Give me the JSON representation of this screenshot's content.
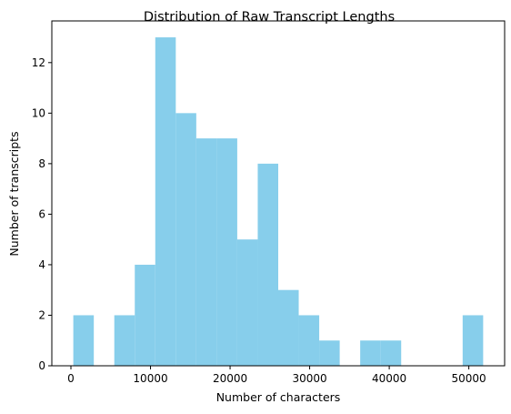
{
  "chart_data": {
    "type": "bar",
    "title": "Distribution of Raw Transcript Lengths",
    "xlabel": "Number of characters",
    "ylabel": "Number of transcripts",
    "xlim": [
      -2400,
      54500
    ],
    "ylim": [
      0,
      13.65
    ],
    "xticks": [
      0,
      10000,
      20000,
      30000,
      40000,
      50000
    ],
    "xtick_labels": [
      "0",
      "10000",
      "20000",
      "30000",
      "40000",
      "50000"
    ],
    "yticks": [
      0,
      2,
      4,
      6,
      8,
      10,
      12
    ],
    "ytick_labels": [
      "0",
      "2",
      "4",
      "6",
      "8",
      "10",
      "12"
    ],
    "bin_start": 300,
    "bin_width": 2575,
    "counts": [
      2,
      0,
      2,
      4,
      13,
      10,
      9,
      9,
      5,
      8,
      3,
      2,
      1,
      0,
      1,
      1,
      0,
      0,
      0,
      2
    ],
    "bar_color": "#87CEEB",
    "grid": false,
    "legend": "none"
  }
}
